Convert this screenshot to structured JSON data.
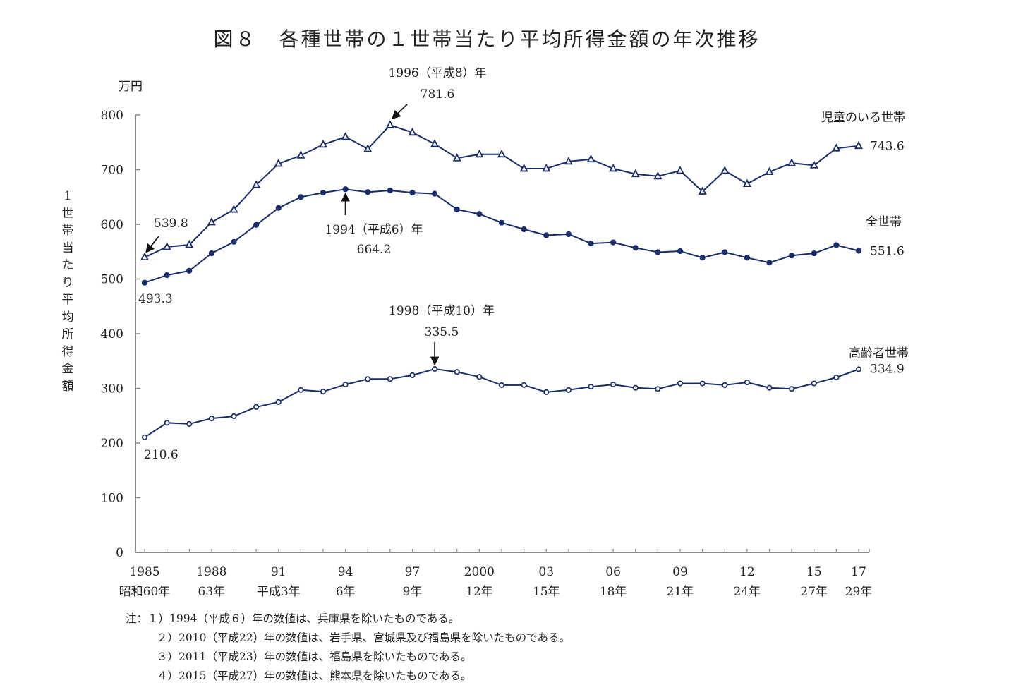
{
  "chart_data": {
    "type": "line",
    "title": "図８　各種世帯の１世帯当たり平均所得金額の年次推移",
    "unit_label": "万円",
    "ylabel": "1世帯当たり平均所得金額",
    "ylim": [
      0,
      800
    ],
    "yticks": [
      0,
      100,
      200,
      300,
      400,
      500,
      600,
      700,
      800
    ],
    "xlim": [
      1985,
      2017
    ],
    "x": [
      1985,
      1986,
      1987,
      1988,
      1989,
      1990,
      1991,
      1992,
      1993,
      1994,
      1995,
      1996,
      1997,
      1998,
      1999,
      2000,
      2001,
      2002,
      2003,
      2004,
      2005,
      2006,
      2007,
      2008,
      2009,
      2010,
      2011,
      2012,
      2013,
      2014,
      2015,
      2016,
      2017
    ],
    "xtick_labels": [
      {
        "year": 1985,
        "western": "1985",
        "japanese": "昭和60年"
      },
      {
        "year": 1988,
        "western": "1988",
        "japanese": "63年"
      },
      {
        "year": 1991,
        "western": "91",
        "japanese": "平成3年"
      },
      {
        "year": 1994,
        "western": "94",
        "japanese": "6年"
      },
      {
        "year": 1997,
        "western": "97",
        "japanese": "9年"
      },
      {
        "year": 2000,
        "western": "2000",
        "japanese": "12年"
      },
      {
        "year": 2003,
        "western": "03",
        "japanese": "15年"
      },
      {
        "year": 2006,
        "western": "06",
        "japanese": "18年"
      },
      {
        "year": 2009,
        "western": "09",
        "japanese": "21年"
      },
      {
        "year": 2012,
        "western": "12",
        "japanese": "24年"
      },
      {
        "year": 2015,
        "western": "15",
        "japanese": "27年"
      },
      {
        "year": 2017,
        "western": "17",
        "japanese": "29年"
      }
    ],
    "grid": false,
    "series": [
      {
        "name": "児童のいる世帯",
        "marker": "triangle-open",
        "color": "#1a2d6b",
        "values": [
          539.8,
          558.7,
          562.6,
          603.9,
          627.0,
          672.0,
          711.0,
          726.0,
          746.0,
          760.0,
          738.0,
          781.6,
          768.0,
          747.0,
          721.0,
          728.0,
          728.0,
          702.0,
          702.0,
          715.0,
          719.0,
          702.0,
          692.0,
          688.0,
          698.0,
          660.0,
          698.0,
          674.0,
          696.0,
          712.0,
          708.0,
          739.0,
          743.6
        ]
      },
      {
        "name": "全世帯",
        "marker": "circle-filled",
        "color": "#1a2d6b",
        "values": [
          493.3,
          507.0,
          515.0,
          547.0,
          568.0,
          599.0,
          630.0,
          650.0,
          658.0,
          664.2,
          659.0,
          662.0,
          658.0,
          656.0,
          627.0,
          619.0,
          603.0,
          591.0,
          580.0,
          582.0,
          565.0,
          567.0,
          557.0,
          549.0,
          551.0,
          539.0,
          549.0,
          539.0,
          530.0,
          543.0,
          547.0,
          562.0,
          551.6
        ]
      },
      {
        "name": "高齢者世帯",
        "marker": "circle-open",
        "color": "#1a2d6b",
        "values": [
          210.6,
          237.0,
          235.0,
          245.0,
          249.0,
          266.0,
          275.0,
          297.0,
          294.0,
          307.0,
          317.0,
          317.0,
          324.0,
          335.5,
          330.0,
          321.0,
          306.0,
          306.0,
          293.0,
          297.0,
          303.0,
          307.0,
          301.0,
          299.0,
          309.0,
          309.0,
          306.0,
          311.0,
          301.0,
          299.0,
          309.0,
          320.0,
          334.9
        ]
      }
    ],
    "annotations": [
      {
        "text": "539.8",
        "series": "児童のいる世帯",
        "year": 1985,
        "arrow": true
      },
      {
        "text": "493.3",
        "series": "全世帯",
        "year": 1985,
        "arrow": false
      },
      {
        "text": "210.6",
        "series": "高齢者世帯",
        "year": 1985,
        "arrow": false
      },
      {
        "text": "1996（平成8）年",
        "value_text": "781.6",
        "series": "児童のいる世帯",
        "year": 1996,
        "arrow": true
      },
      {
        "text": "1994（平成6）年",
        "value_text": "664.2",
        "series": "全世帯",
        "year": 1994,
        "arrow": true
      },
      {
        "text": "1998（平成10）年",
        "value_text": "335.5",
        "series": "高齢者世帯",
        "year": 1998,
        "arrow": true
      },
      {
        "text": "743.6",
        "series": "児童のいる世帯",
        "year": 2017,
        "arrow": false
      },
      {
        "text": "551.6",
        "series": "全世帯",
        "year": 2017,
        "arrow": false
      },
      {
        "text": "334.9",
        "series": "高齢者世帯",
        "year": 2017,
        "arrow": false
      }
    ],
    "legend": "inline-right"
  },
  "notes": {
    "prefix": "注：",
    "items": [
      "１）1994（平成６）年の数値は、兵庫県を除いたものである。",
      "２）2010（平成22）年の数値は、岩手県、宮城県及び福島県を除いたものである。",
      "３）2011（平成23）年の数値は、福島県を除いたものである。",
      "４）2015（平成27）年の数値は、熊本県を除いたものである。"
    ]
  }
}
